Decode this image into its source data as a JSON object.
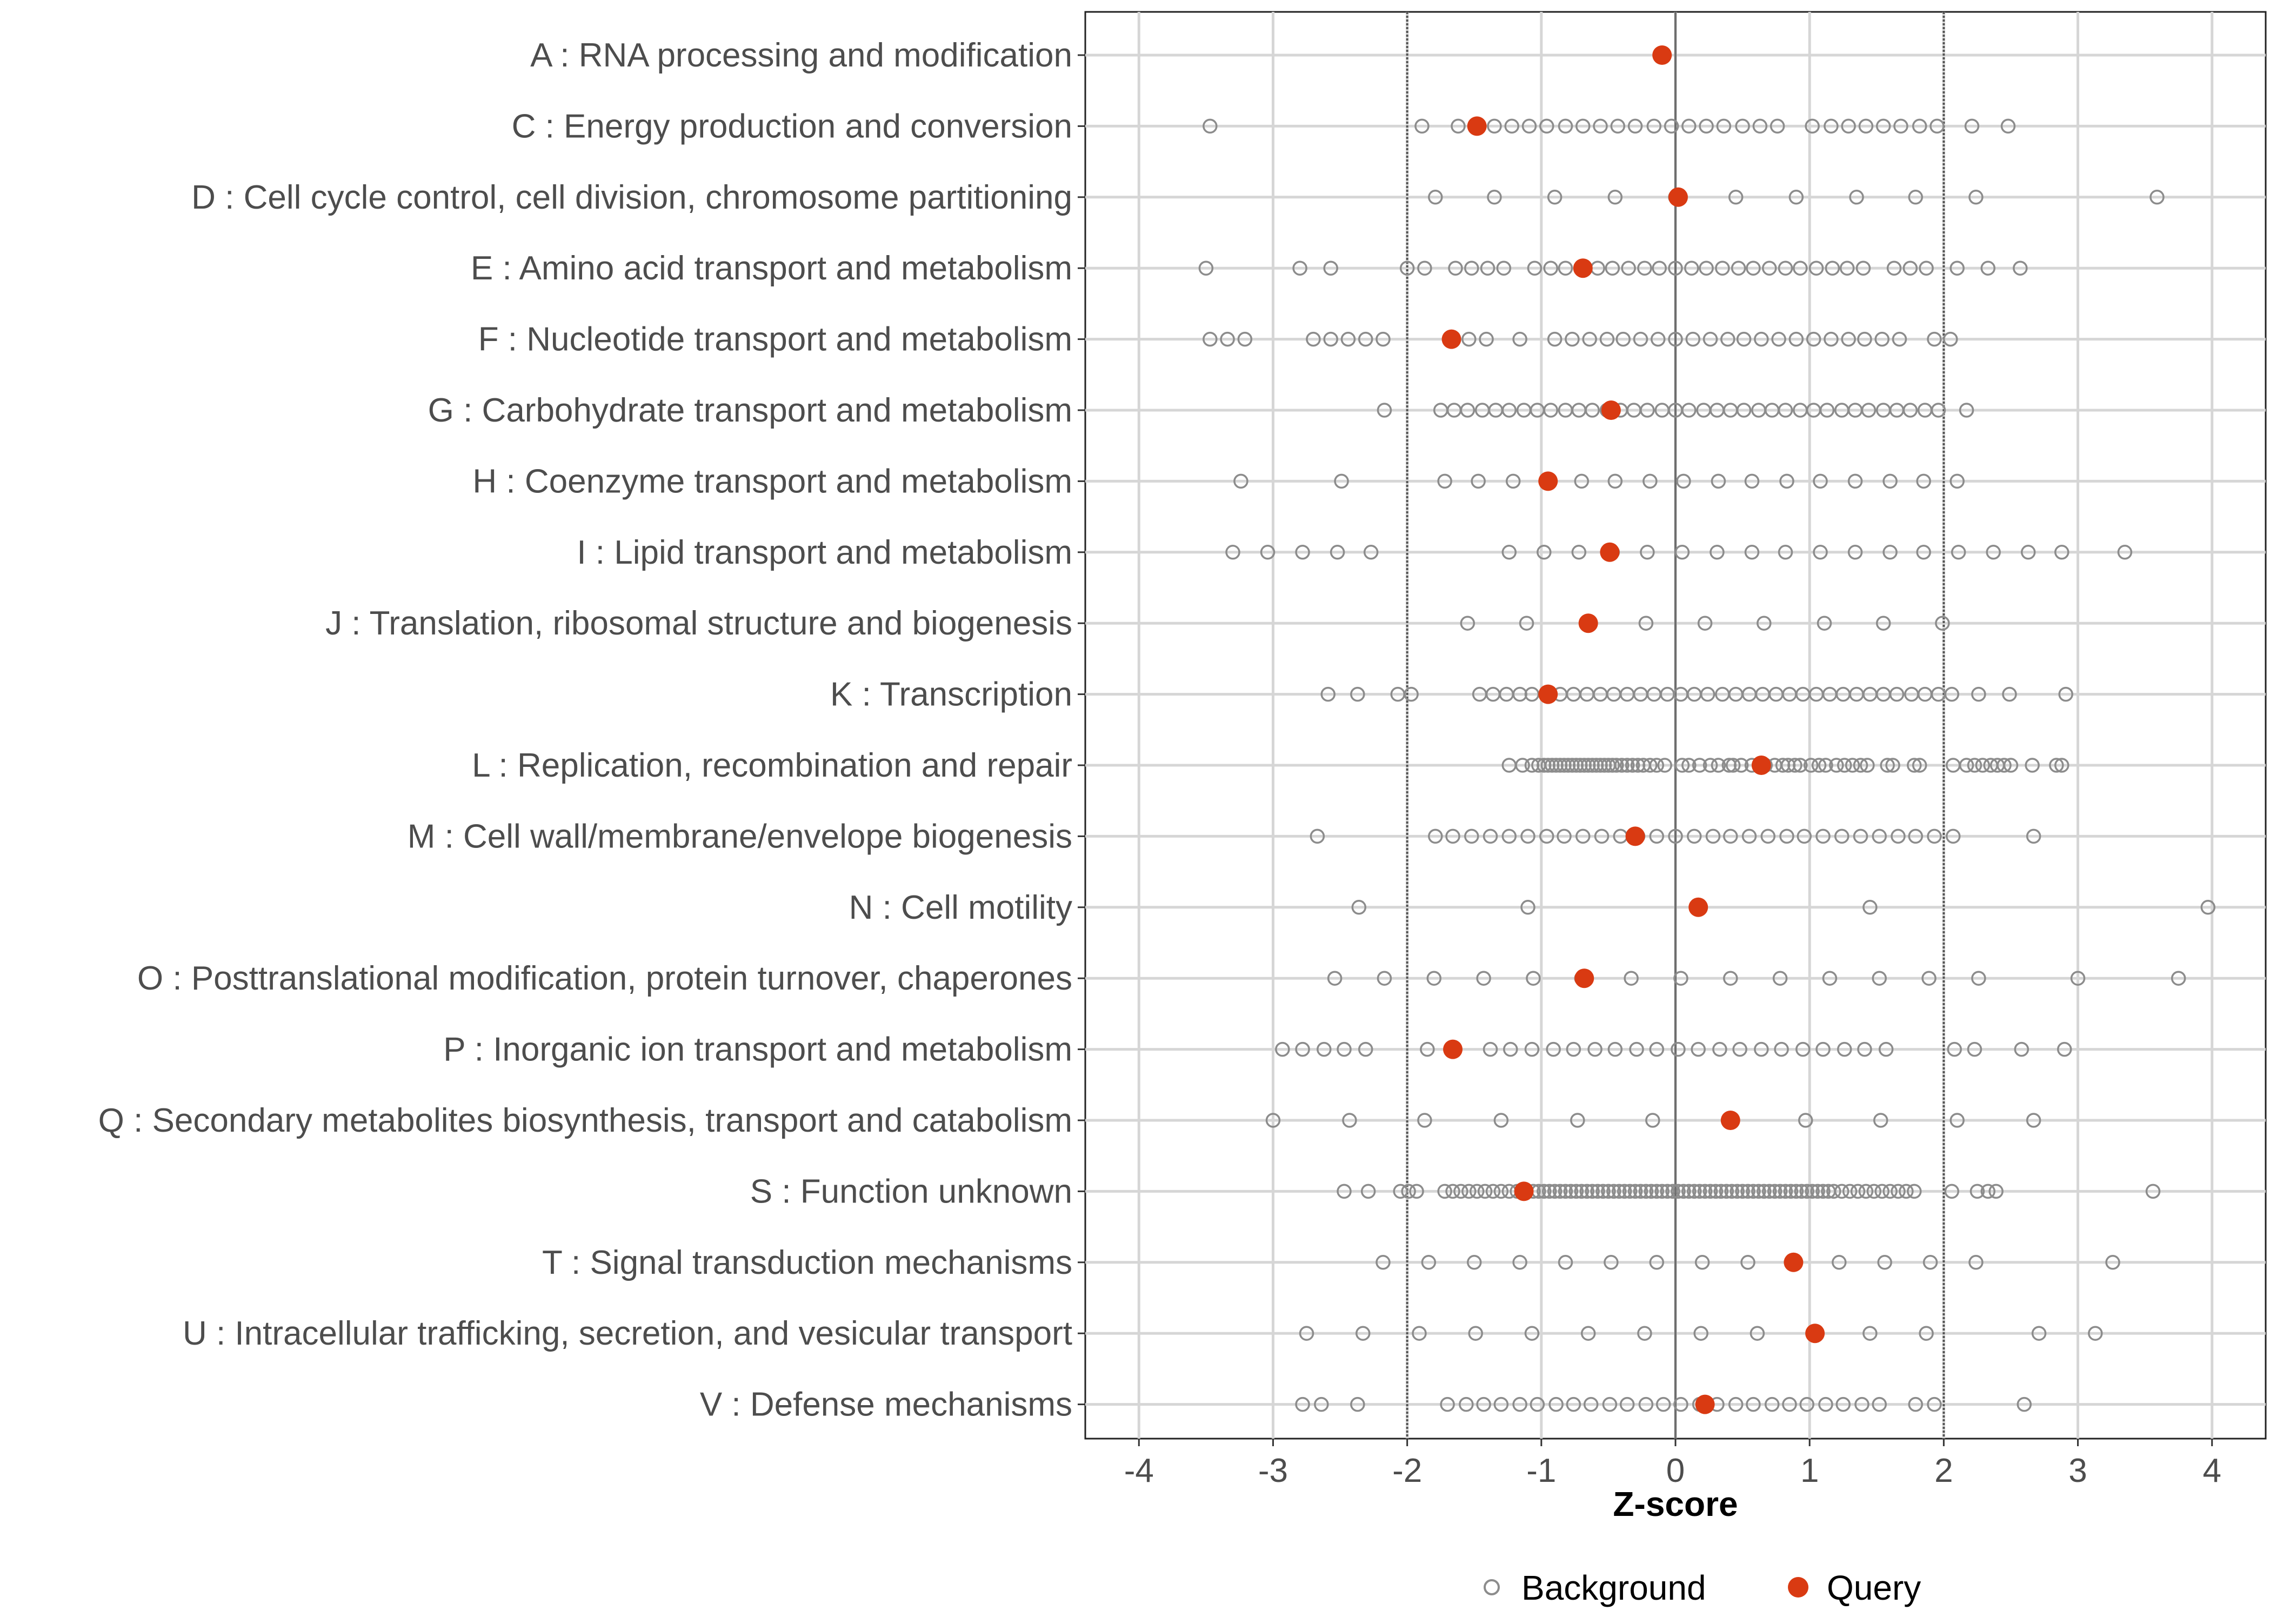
{
  "chart_data": {
    "type": "scatter",
    "title": "",
    "xlabel": "Z-score",
    "ylabel": "",
    "xlim": [
      -4.4,
      4.4
    ],
    "xticks": [
      -4,
      -3,
      -2,
      -1,
      0,
      1,
      2,
      3,
      4
    ],
    "xtick_labels": [
      "-4",
      "-3",
      "-2",
      "-1",
      "0",
      "1",
      "2",
      "3",
      "4"
    ],
    "reference_lines": [
      -2,
      0,
      2
    ],
    "grid": true,
    "legend": {
      "position": "bottom",
      "entries": [
        {
          "name": "Background",
          "marker": "open-circle",
          "color": "#8c8c8c"
        },
        {
          "name": "Query",
          "marker": "filled-circle",
          "color": "#d93a12"
        }
      ]
    },
    "categories": [
      "A : RNA processing and modification",
      "C : Energy production and conversion",
      "D : Cell cycle control, cell division, chromosome partitioning",
      "E : Amino acid transport and metabolism",
      "F : Nucleotide transport and metabolism",
      "G : Carbohydrate transport and metabolism",
      "H : Coenzyme transport and metabolism",
      "I : Lipid transport and metabolism",
      "J : Translation, ribosomal structure and biogenesis",
      "K : Transcription",
      "L : Replication, recombination and repair",
      "M : Cell wall/membrane/envelope biogenesis",
      "N : Cell motility",
      "O : Posttranslational modification, protein turnover, chaperones",
      "P : Inorganic ion transport and metabolism",
      "Q : Secondary metabolites biosynthesis, transport and catabolism",
      "S : Function unknown",
      "T : Signal transduction mechanisms",
      "U : Intracellular trafficking, secretion, and vesicular transport",
      "V : Defense mechanisms"
    ],
    "series": [
      {
        "name": "Background",
        "color": "#8c8c8c",
        "values": [
          [],
          [
            -3.47,
            -1.89,
            -1.62,
            -1.49,
            -1.35,
            -1.22,
            -1.09,
            -0.96,
            -0.82,
            -0.69,
            -0.56,
            -0.43,
            -0.3,
            -0.16,
            -0.03,
            0.1,
            0.23,
            0.36,
            0.5,
            0.63,
            0.76,
            1.02,
            1.16,
            1.29,
            1.42,
            1.55,
            1.68,
            1.82,
            1.95,
            2.21,
            2.48
          ],
          [
            -1.79,
            -1.35,
            -0.9,
            -0.45,
            0.0,
            0.45,
            0.9,
            1.35,
            1.79,
            2.24,
            3.59
          ],
          [
            -3.5,
            -2.8,
            -2.57,
            -2.0,
            -1.87,
            -1.64,
            -1.52,
            -1.4,
            -1.28,
            -1.05,
            -0.93,
            -0.82,
            -0.7,
            -0.58,
            -0.47,
            -0.35,
            -0.23,
            -0.12,
            0.0,
            0.12,
            0.23,
            0.35,
            0.47,
            0.58,
            0.7,
            0.82,
            0.93,
            1.05,
            1.17,
            1.28,
            1.4,
            1.63,
            1.75,
            1.87,
            2.1,
            2.33,
            2.57
          ],
          [
            -3.47,
            -3.34,
            -3.21,
            -2.7,
            -2.57,
            -2.44,
            -2.31,
            -2.18,
            -1.54,
            -1.41,
            -1.16,
            -0.9,
            -0.77,
            -0.64,
            -0.51,
            -0.39,
            -0.26,
            -0.13,
            0.0,
            0.13,
            0.26,
            0.39,
            0.51,
            0.64,
            0.77,
            0.9,
            1.03,
            1.16,
            1.29,
            1.41,
            1.54,
            1.67,
            1.93,
            2.05
          ],
          [
            -2.17,
            -1.75,
            -1.65,
            -1.55,
            -1.44,
            -1.34,
            -1.24,
            -1.13,
            -1.03,
            -0.93,
            -0.82,
            -0.72,
            -0.62,
            -0.51,
            -0.41,
            -0.31,
            -0.21,
            -0.1,
            0.0,
            0.1,
            0.21,
            0.31,
            0.41,
            0.51,
            0.62,
            0.72,
            0.82,
            0.93,
            1.03,
            1.13,
            1.24,
            1.34,
            1.44,
            1.55,
            1.65,
            1.75,
            1.86,
            1.96,
            2.17
          ],
          [
            -3.24,
            -2.49,
            -1.72,
            -1.47,
            -1.21,
            -0.96,
            -0.7,
            -0.45,
            -0.19,
            0.06,
            0.32,
            0.57,
            0.83,
            1.08,
            1.34,
            1.6,
            1.85,
            2.1
          ],
          [
            -3.3,
            -3.04,
            -2.78,
            -2.52,
            -2.27,
            -1.24,
            -0.98,
            -0.72,
            -0.47,
            -0.21,
            0.05,
            0.31,
            0.57,
            0.82,
            1.08,
            1.34,
            1.6,
            1.85,
            2.11,
            2.37,
            2.63,
            2.88,
            3.35
          ],
          [
            -1.55,
            -1.11,
            -0.66,
            -0.22,
            0.22,
            0.66,
            1.11,
            1.55,
            1.99
          ],
          [
            -2.59,
            -2.37,
            -2.07,
            -1.97,
            -1.46,
            -1.36,
            -1.26,
            -1.16,
            -1.07,
            -0.96,
            -0.86,
            -0.76,
            -0.66,
            -0.56,
            -0.46,
            -0.36,
            -0.26,
            -0.16,
            -0.06,
            0.04,
            0.14,
            0.24,
            0.35,
            0.45,
            0.55,
            0.65,
            0.75,
            0.85,
            0.95,
            1.05,
            1.15,
            1.25,
            1.35,
            1.45,
            1.55,
            1.65,
            1.76,
            1.86,
            1.96,
            2.06,
            2.26,
            2.49,
            2.91
          ],
          [
            -1.24,
            -1.14,
            -1.07,
            -1.02,
            -0.98,
            -0.95,
            -0.92,
            -0.89,
            -0.86,
            -0.83,
            -0.8,
            -0.77,
            -0.74,
            -0.71,
            -0.68,
            -0.65,
            -0.62,
            -0.59,
            -0.56,
            -0.53,
            -0.5,
            -0.47,
            -0.44,
            -0.4,
            -0.36,
            -0.32,
            -0.28,
            -0.24,
            -0.19,
            -0.14,
            -0.08,
            0.05,
            0.1,
            0.18,
            0.26,
            0.32,
            0.4,
            0.43,
            0.49,
            0.57,
            0.67,
            0.74,
            0.8,
            0.84,
            0.89,
            0.93,
            1.01,
            1.07,
            1.12,
            1.2,
            1.26,
            1.32,
            1.38,
            1.43,
            1.58,
            1.62,
            1.78,
            1.82,
            2.07,
            2.17,
            2.23,
            2.29,
            2.35,
            2.4,
            2.45,
            2.5,
            2.66,
            2.84,
            2.88
          ],
          [
            -2.67,
            -1.79,
            -1.66,
            -1.52,
            -1.38,
            -1.24,
            -1.1,
            -0.96,
            -0.83,
            -0.69,
            -0.55,
            -0.41,
            -0.28,
            -0.14,
            0.0,
            0.14,
            0.28,
            0.41,
            0.55,
            0.69,
            0.83,
            0.96,
            1.1,
            1.24,
            1.38,
            1.52,
            1.66,
            1.79,
            1.93,
            2.07,
            2.67
          ],
          [
            -2.36,
            -1.1,
            1.45,
            3.97
          ],
          [
            -2.54,
            -2.17,
            -1.8,
            -1.43,
            -1.06,
            -0.7,
            -0.33,
            0.04,
            0.41,
            0.78,
            1.15,
            1.52,
            1.89,
            2.26,
            3.0,
            3.75
          ],
          [
            -2.93,
            -2.78,
            -2.62,
            -2.47,
            -2.31,
            -1.85,
            -1.38,
            -1.23,
            -1.07,
            -0.91,
            -0.76,
            -0.6,
            -0.45,
            -0.29,
            -0.14,
            0.02,
            0.17,
            0.33,
            0.48,
            0.64,
            0.79,
            0.95,
            1.1,
            1.26,
            1.41,
            1.57,
            2.08,
            2.23,
            2.58,
            2.9
          ],
          [
            -3.0,
            -2.43,
            -1.87,
            -1.3,
            -0.73,
            -0.17,
            0.4,
            0.97,
            1.53,
            2.1,
            2.67
          ],
          [
            -2.47,
            -2.29,
            -2.05,
            -1.99,
            -1.93,
            -1.72,
            -1.66,
            -1.6,
            -1.54,
            -1.48,
            -1.42,
            -1.36,
            -1.3,
            -1.24,
            -1.18,
            -1.12,
            -1.06,
            -1.02,
            -0.98,
            -0.94,
            -0.9,
            -0.86,
            -0.82,
            -0.78,
            -0.74,
            -0.7,
            -0.66,
            -0.62,
            -0.58,
            -0.54,
            -0.5,
            -0.46,
            -0.42,
            -0.38,
            -0.34,
            -0.3,
            -0.26,
            -0.22,
            -0.18,
            -0.14,
            -0.1,
            -0.06,
            -0.02,
            0.02,
            0.06,
            0.1,
            0.14,
            0.18,
            0.22,
            0.26,
            0.3,
            0.34,
            0.38,
            0.42,
            0.46,
            0.5,
            0.54,
            0.58,
            0.62,
            0.66,
            0.7,
            0.74,
            0.78,
            0.82,
            0.86,
            0.9,
            0.94,
            0.98,
            1.02,
            1.06,
            1.1,
            1.14,
            1.18,
            1.24,
            1.3,
            1.36,
            1.42,
            1.48,
            1.54,
            1.6,
            1.66,
            1.72,
            1.78,
            2.06,
            2.25,
            2.33,
            2.39,
            3.56
          ],
          [
            -2.18,
            -1.84,
            -1.5,
            -1.16,
            -0.82,
            -0.48,
            -0.14,
            0.2,
            0.54,
            1.22,
            1.56,
            1.9,
            2.24,
            3.26
          ],
          [
            -2.75,
            -2.33,
            -1.91,
            -1.49,
            -1.07,
            -0.65,
            -0.23,
            0.19,
            0.61,
            1.45,
            1.87,
            2.71,
            3.13
          ],
          [
            -2.78,
            -2.64,
            -2.37,
            -1.7,
            -1.56,
            -1.43,
            -1.3,
            -1.16,
            -1.03,
            -0.89,
            -0.76,
            -0.63,
            -0.49,
            -0.36,
            -0.22,
            -0.09,
            0.04,
            0.18,
            0.31,
            0.45,
            0.58,
            0.72,
            0.85,
            0.98,
            1.12,
            1.25,
            1.39,
            1.52,
            1.79,
            1.93,
            2.6
          ]
        ]
      },
      {
        "name": "Query",
        "color": "#d93a12",
        "values": [
          -0.1,
          -1.48,
          0.02,
          -0.69,
          -1.67,
          -0.48,
          -0.95,
          -0.49,
          -0.65,
          -0.95,
          0.64,
          -0.3,
          0.17,
          -0.68,
          -1.66,
          0.41,
          -1.13,
          0.88,
          1.04,
          0.22
        ]
      }
    ]
  }
}
